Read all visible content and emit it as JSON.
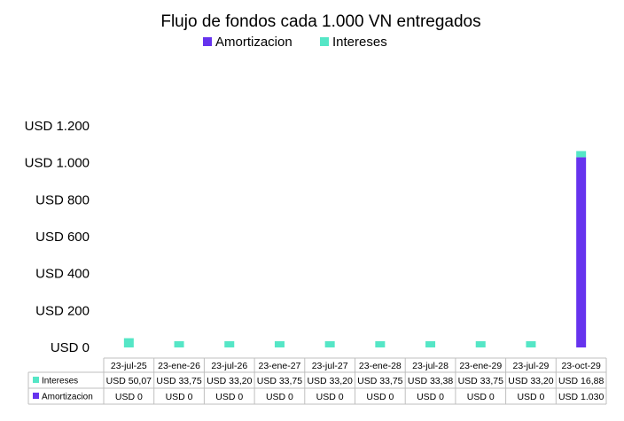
{
  "chart_data": {
    "type": "bar",
    "stacked": true,
    "title": "Flujo de fondos cada 1.000 VN entregados",
    "legend": {
      "placement": "top",
      "entries": [
        "Amortizacion",
        "Intereses"
      ]
    },
    "categories": [
      "23-jul-25",
      "23-ene-26",
      "23-jul-26",
      "23-ene-27",
      "23-jul-27",
      "23-ene-28",
      "23-jul-28",
      "23-ene-29",
      "23-jul-29",
      "23-oct-29"
    ],
    "series": [
      {
        "name": "Amortizacion",
        "color": "#6633ee",
        "values": [
          0,
          0,
          0,
          0,
          0,
          0,
          0,
          0,
          0,
          1030
        ],
        "labels": [
          "USD 0",
          "USD 0",
          "USD 0",
          "USD 0",
          "USD 0",
          "USD 0",
          "USD 0",
          "USD 0",
          "USD 0",
          "USD 1.030"
        ]
      },
      {
        "name": "Intereses",
        "color": "#55e6c6",
        "values": [
          50.07,
          33.75,
          33.2,
          33.75,
          33.2,
          33.75,
          33.38,
          33.75,
          33.2,
          16.88
        ],
        "labels": [
          "USD 50,07",
          "USD 33,75",
          "USD 33,20",
          "USD 33,75",
          "USD 33,20",
          "USD 33,75",
          "USD 33,38",
          "USD 33,75",
          "USD 33,20",
          "USD 16,88"
        ]
      }
    ],
    "ylim": [
      0,
      1200
    ],
    "yticks": [
      0,
      200,
      400,
      600,
      800,
      1000,
      1200
    ],
    "ytick_labels": [
      "USD 0",
      "USD 200",
      "USD 400",
      "USD 600",
      "USD 800",
      "USD 1.000",
      "USD 1.200"
    ],
    "grid": false,
    "data_table": true
  }
}
